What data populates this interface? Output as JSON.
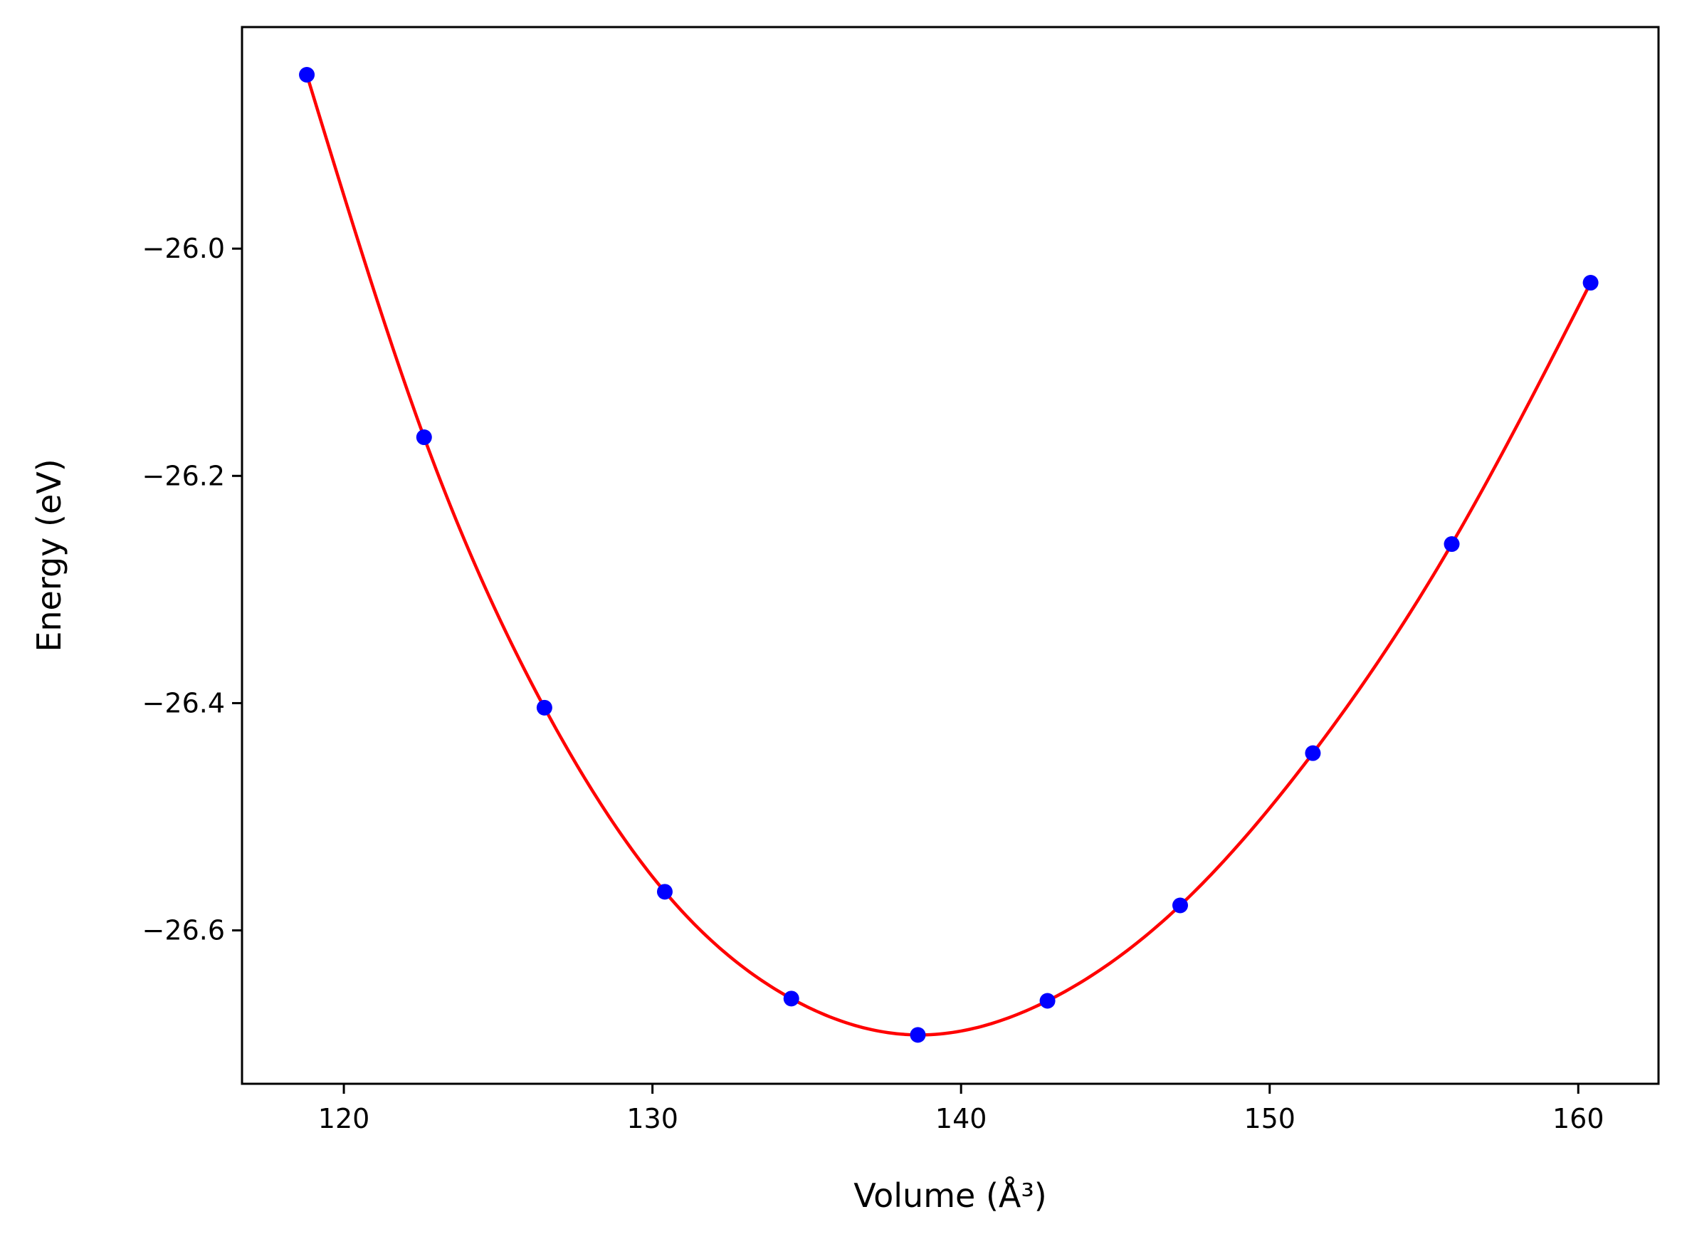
{
  "chart_data": {
    "type": "scatter",
    "title": "",
    "xlabel": "Volume (Å³)",
    "ylabel": "Energy (eV)",
    "xlim": [
      116.7,
      162.6
    ],
    "ylim": [
      -26.735,
      -25.805
    ],
    "xticks": [
      120,
      130,
      140,
      150,
      160
    ],
    "yticks": [
      -26.0,
      -26.2,
      -26.4,
      -26.6
    ],
    "xtick_labels": [
      "120",
      "130",
      "140",
      "150",
      "160"
    ],
    "ytick_labels": [
      "−26.0",
      "−26.2",
      "−26.4",
      "−26.6"
    ],
    "grid": false,
    "legend": null,
    "series": [
      {
        "kind": "markers",
        "color": "#0000ff",
        "x": [
          118.8,
          122.6,
          126.5,
          130.4,
          134.5,
          138.6,
          142.8,
          147.1,
          151.4,
          155.9,
          160.4
        ],
        "y": [
          -25.847,
          -26.166,
          -26.404,
          -26.566,
          -26.66,
          -26.692,
          -26.662,
          -26.578,
          -26.444,
          -26.26,
          -26.03
        ]
      },
      {
        "kind": "fit-curve",
        "color": "#ff0000",
        "x": [
          118.8,
          122.6,
          126.5,
          130.4,
          134.5,
          138.6,
          142.8,
          147.1,
          151.4,
          155.9,
          160.4
        ],
        "y": [
          -25.847,
          -26.166,
          -26.404,
          -26.566,
          -26.66,
          -26.692,
          -26.662,
          -26.578,
          -26.444,
          -26.26,
          -26.03
        ]
      }
    ]
  }
}
